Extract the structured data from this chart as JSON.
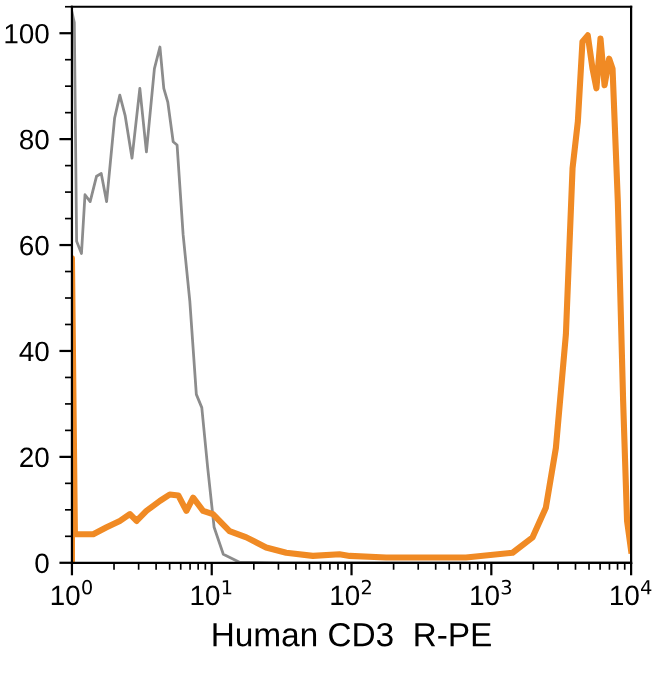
{
  "chart_data": {
    "type": "line",
    "xlabel": "Human CD3  R-PE",
    "log": "x",
    "grid": false,
    "legend": false,
    "marker": "none",
    "line_style": "solid",
    "xlim": [
      1,
      10000
    ],
    "ylim": [
      0,
      105
    ],
    "xticks": [
      {
        "value": 1,
        "label": "10$^{0}$"
      },
      {
        "value": 10,
        "label": "10$^{1}$"
      },
      {
        "value": 100,
        "label": "10$^{2}$"
      },
      {
        "value": 1000,
        "label": "10$^{3}$"
      },
      {
        "value": 10000,
        "label": "10$^{4}$"
      }
    ],
    "yticks": [
      0,
      20,
      40,
      60,
      80,
      100
    ],
    "series": [
      {
        "color": "#8c8c8c",
        "x": [
          1.0,
          1.04,
          1.08,
          1.17,
          1.24,
          1.35,
          1.5,
          1.62,
          1.77,
          2.02,
          2.2,
          2.4,
          2.69,
          3.06,
          3.41,
          3.89,
          4.26,
          4.54,
          4.85,
          5.3,
          5.65,
          6.24,
          6.97,
          7.76,
          8.49,
          9.35,
          10.4,
          12.1,
          15.8,
          30.6,
          10000
        ],
        "values": [
          104,
          102,
          60.7,
          58.4,
          69.5,
          68.2,
          73,
          73.5,
          68.2,
          84,
          88.3,
          84.5,
          76.4,
          89.6,
          77.6,
          93.3,
          97.4,
          89.6,
          87,
          79.5,
          78.9,
          62,
          49.4,
          31.8,
          29.3,
          18,
          6.7,
          1.6,
          0.1,
          0,
          0
        ]
      },
      {
        "color": "#f08a24",
        "x": [
          1.0,
          1.0,
          1.05,
          1.14,
          1.42,
          1.77,
          2.2,
          2.6,
          2.9,
          3.41,
          4.26,
          5.01,
          5.78,
          6.59,
          7.36,
          8.67,
          10.2,
          13.4,
          17.7,
          24.5,
          34.1,
          52.9,
          82,
          97,
          177,
          659,
          1419,
          1974,
          2455,
          2897,
          3415,
          3811,
          4159,
          4487,
          4898,
          5297,
          5649,
          6039,
          6457,
          6966,
          7365,
          8036,
          8770,
          9354,
          10000
        ],
        "values": [
          0,
          57.5,
          5.4,
          5.4,
          5.4,
          6.7,
          7.9,
          9.2,
          7.9,
          9.8,
          11.7,
          12.9,
          12.7,
          9.8,
          12.3,
          9.8,
          9.2,
          6,
          4.8,
          2.9,
          1.9,
          1.3,
          1.6,
          1.3,
          1.0,
          1.0,
          1.9,
          4.8,
          10.4,
          21.7,
          43.1,
          74.5,
          83.3,
          98.4,
          99.6,
          93.3,
          89.6,
          99,
          90.2,
          95.2,
          93.3,
          68.2,
          30.5,
          7.9,
          2.3
        ]
      }
    ]
  }
}
